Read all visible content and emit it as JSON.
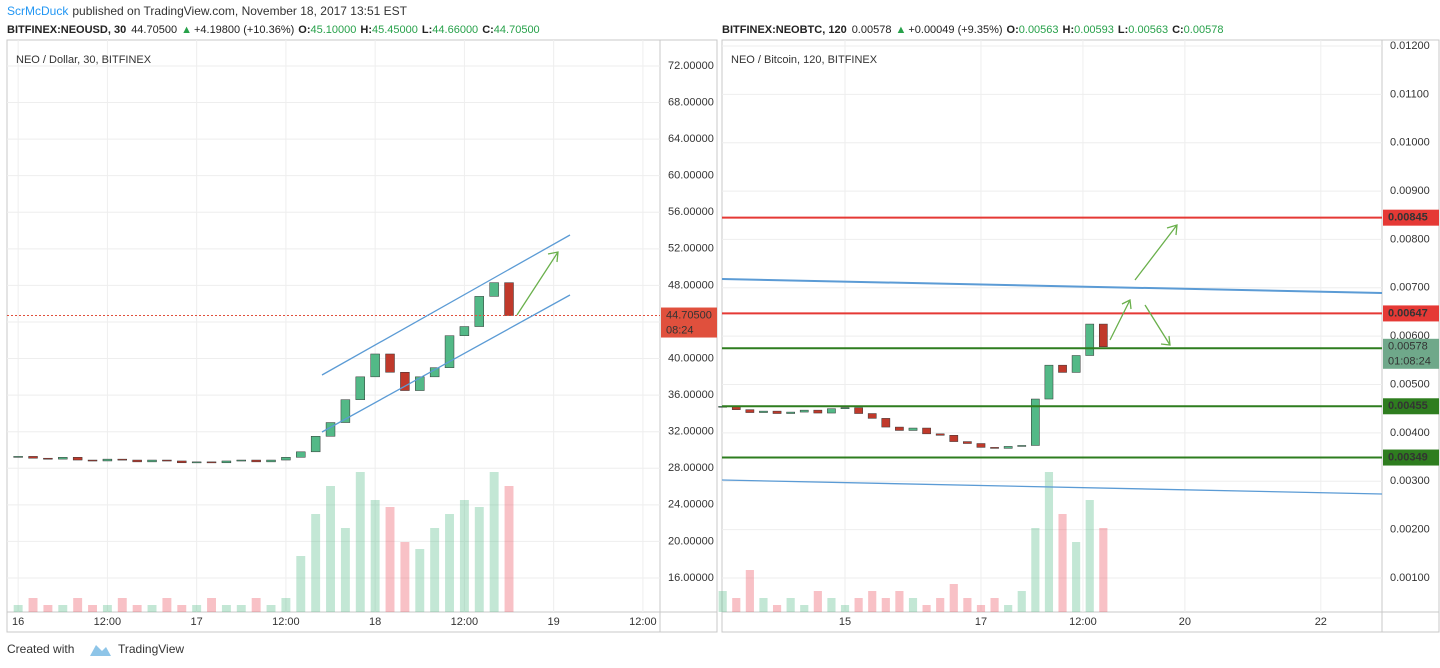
{
  "header": {
    "author": "ScrMcDuck",
    "published": "published on TradingView.com, November 18, 2017 13:51 EST"
  },
  "footer": {
    "created": "Created with",
    "brand": "TradingView"
  },
  "chart_data": [
    {
      "type": "candlestick",
      "title": "NEO / Dollar, 30, BITFINEX",
      "legend": {
        "symbol": "BITFINEX:NEOUSD, 30",
        "last": "44.70500",
        "direction": "▲",
        "change": "+4.19800 (+10.36%)",
        "ohlc": [
          {
            "key": "O:",
            "value": "45.10000"
          },
          {
            "key": "H:",
            "value": "45.45000"
          },
          {
            "key": "L:",
            "value": "44.66000"
          },
          {
            "key": "C:",
            "value": "44.70500"
          }
        ]
      },
      "xlim": [
        -1.5,
        86.3
      ],
      "xticks": [
        {
          "value": 0,
          "label": "16"
        },
        {
          "value": 12,
          "label": "12:00"
        },
        {
          "value": 24,
          "label": "17"
        },
        {
          "value": 36,
          "label": "12:00"
        },
        {
          "value": 48,
          "label": "18"
        },
        {
          "value": 60,
          "label": "12:00"
        },
        {
          "value": 72,
          "label": "19"
        },
        {
          "value": 84,
          "label": "12:00"
        }
      ],
      "ylim": [
        12.28,
        74.84
      ],
      "yticks": [
        {
          "value": 16,
          "label": "16.00000"
        },
        {
          "value": 20,
          "label": "20.00000"
        },
        {
          "value": 24,
          "label": "24.00000"
        },
        {
          "value": 28,
          "label": "28.00000"
        },
        {
          "value": 32,
          "label": "32.00000"
        },
        {
          "value": 36,
          "label": "36.00000"
        },
        {
          "value": 40,
          "label": "40.00000"
        },
        {
          "value": 44,
          "label": "44.00000"
        },
        {
          "value": 48,
          "label": "48.00000"
        },
        {
          "value": 52,
          "label": "52.00000"
        },
        {
          "value": 56,
          "label": "56.00000"
        },
        {
          "value": 60,
          "label": "60.00000"
        },
        {
          "value": 64,
          "label": "64.00000"
        },
        {
          "value": 68,
          "label": "68.00000"
        },
        {
          "value": 72,
          "label": "72.00000"
        }
      ],
      "t": [
        0,
        2,
        4,
        6,
        8,
        10,
        12,
        14,
        16,
        18,
        20,
        22,
        24,
        26,
        28,
        30,
        32,
        34,
        36,
        38,
        40,
        42,
        44,
        46,
        48,
        50,
        52,
        54,
        56,
        58,
        60,
        62,
        64,
        66
      ],
      "closes": [
        29.3,
        29.1,
        29.0,
        29.2,
        28.9,
        28.8,
        29.0,
        28.9,
        28.7,
        28.9,
        28.8,
        28.6,
        28.7,
        28.6,
        28.8,
        28.9,
        28.7,
        28.9,
        29.2,
        29.8,
        31.5,
        33.0,
        35.5,
        38.0,
        40.5,
        38.5,
        36.5,
        38.0,
        39.0,
        42.5,
        43.5,
        46.8,
        48.3,
        44.705
      ],
      "volumes": [
        1,
        2,
        1,
        1,
        2,
        1,
        1,
        2,
        1,
        1,
        2,
        1,
        1,
        2,
        1,
        1,
        2,
        1,
        2,
        8,
        14,
        18,
        12,
        20,
        16,
        15,
        10,
        9,
        12,
        14,
        16,
        15,
        20,
        18
      ],
      "last_price": {
        "value": 44.705,
        "label": "44.70500",
        "countdown": "08:24",
        "color": "#e0503d"
      },
      "levels": []
    },
    {
      "type": "candlestick",
      "title": "NEO / Bitcoin, 120, BITFINEX",
      "legend": {
        "symbol": "BITFINEX:NEOBTC, 120",
        "last": "0.00578",
        "direction": "▲",
        "change": "+0.00049 (+9.35%)",
        "ohlc": [
          {
            "key": "O:",
            "value": "0.00563"
          },
          {
            "key": "H:",
            "value": "0.00593"
          },
          {
            "key": "L:",
            "value": "0.00563"
          },
          {
            "key": "C:",
            "value": "0.00578"
          }
        ]
      },
      "xlim": [
        -1.81,
        7.9
      ],
      "xticks": [
        {
          "value": 0,
          "label": "15"
        },
        {
          "value": 2,
          "label": "17"
        },
        {
          "value": 3.5,
          "label": "12:00"
        },
        {
          "value": 5,
          "label": "20"
        },
        {
          "value": 7,
          "label": "22"
        }
      ],
      "ylim": [
        0.000296,
        0.012124
      ],
      "yticks": [
        {
          "value": 0.001,
          "label": "0.00100"
        },
        {
          "value": 0.002,
          "label": "0.00200"
        },
        {
          "value": 0.003,
          "label": "0.00300"
        },
        {
          "value": 0.004,
          "label": "0.00400"
        },
        {
          "value": 0.005,
          "label": "0.00500"
        },
        {
          "value": 0.006,
          "label": "0.00600"
        },
        {
          "value": 0.007,
          "label": "0.00700"
        },
        {
          "value": 0.008,
          "label": "0.00800"
        },
        {
          "value": 0.009,
          "label": "0.00900"
        },
        {
          "value": 0.01,
          "label": "0.01000"
        },
        {
          "value": 0.011,
          "label": "0.01100"
        },
        {
          "value": 0.012,
          "label": "0.01200"
        }
      ],
      "t": [
        -1.8,
        -1.6,
        -1.4,
        -1.2,
        -1.0,
        -0.8,
        -0.6,
        -0.4,
        -0.2,
        0,
        0.2,
        0.4,
        0.6,
        0.8,
        1.0,
        1.2,
        1.4,
        1.6,
        1.8,
        2.0,
        2.2,
        2.4,
        2.6,
        2.8,
        3.0,
        3.2,
        3.4,
        3.6,
        3.8
      ],
      "closes": [
        0.00455,
        0.00448,
        0.00442,
        0.00445,
        0.0044,
        0.00443,
        0.00447,
        0.00441,
        0.0045,
        0.00452,
        0.0044,
        0.0043,
        0.00412,
        0.00405,
        0.0041,
        0.00398,
        0.00395,
        0.00382,
        0.00378,
        0.0037,
        0.00368,
        0.00372,
        0.00374,
        0.0047,
        0.0054,
        0.00525,
        0.0056,
        0.00625,
        0.00578
      ],
      "volumes": [
        3,
        2,
        6,
        2,
        1,
        2,
        1,
        3,
        2,
        1,
        2,
        3,
        2,
        3,
        2,
        1,
        2,
        4,
        2,
        1,
        2,
        1,
        3,
        12,
        20,
        14,
        10,
        16,
        12
      ],
      "last_price": {
        "value": 0.00578,
        "label": "0.00578",
        "countdown": "01:08:24",
        "color": "#6fa88a"
      },
      "levels": [
        {
          "value": 0.00845,
          "color": "#e53935"
        },
        {
          "value": 0.00647,
          "color": "#e53935"
        },
        {
          "value": 0.00575,
          "color": "#2e7d1f"
        },
        {
          "value": 0.00455,
          "color": "#2e7d1f"
        },
        {
          "value": 0.00349,
          "color": "#2e7d1f"
        }
      ]
    }
  ]
}
